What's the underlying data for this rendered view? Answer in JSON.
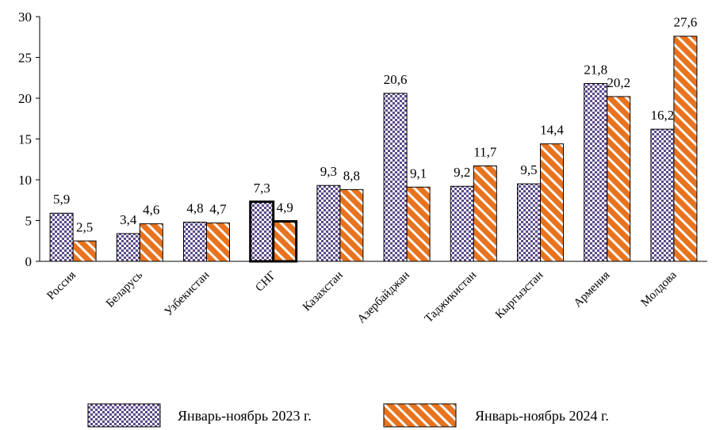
{
  "chart_data": {
    "type": "bar",
    "title": "",
    "xlabel": "",
    "ylabel": "",
    "ylim": [
      0,
      30
    ],
    "yticks": [
      0,
      5,
      10,
      15,
      20,
      25,
      30
    ],
    "grid": false,
    "legend_position": "bottom",
    "categories": [
      "Россия",
      "Беларусь",
      "Узбекистан",
      "СНГ",
      "Казахстан",
      "Азербайджан",
      "Таджикистан",
      "Кыргызстан",
      "Армения",
      "Молдова"
    ],
    "highlighted_category": "СНГ",
    "series": [
      {
        "name": "Январь-ноябрь 2023 г.",
        "pattern": "checkered",
        "color": "#5b4a8a",
        "values": [
          5.9,
          3.4,
          4.8,
          7.3,
          9.3,
          20.6,
          9.2,
          9.5,
          21.8,
          16.2
        ],
        "labels": [
          "5,9",
          "3,4",
          "4,8",
          "7,3",
          "9,3",
          "20,6",
          "9,2",
          "9,5",
          "21,8",
          "16,2"
        ]
      },
      {
        "name": "Январь-ноябрь 2024 г.",
        "pattern": "diagonal-stripes",
        "color": "#e8731e",
        "values": [
          2.5,
          4.6,
          4.7,
          4.9,
          8.8,
          9.1,
          11.7,
          14.4,
          20.2,
          27.6
        ],
        "labels": [
          "2,5",
          "4,6",
          "4,7",
          "4,9",
          "8,8",
          "9,1",
          "11,7",
          "14,4",
          "20,2",
          "27,6"
        ]
      }
    ]
  }
}
